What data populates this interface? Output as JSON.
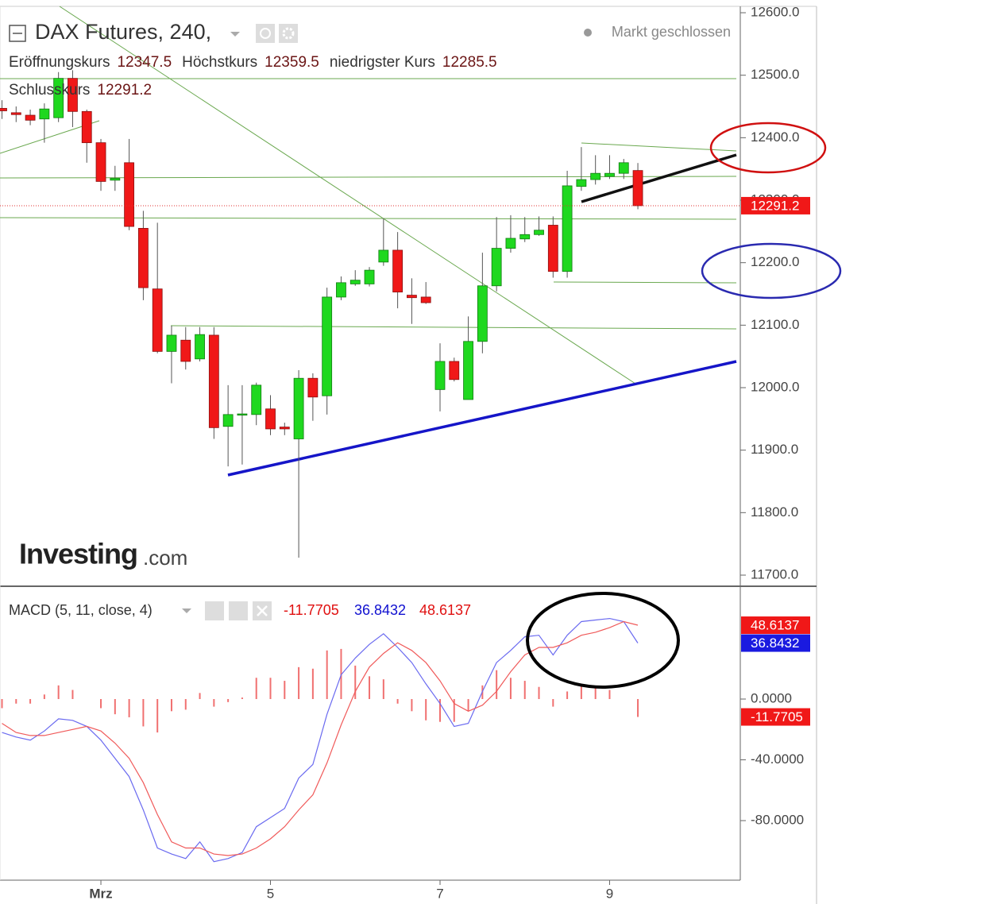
{
  "chart_data": [
    {
      "type": "candlestick",
      "title": "DAX Futures, 240,",
      "status": "Markt geschlossen",
      "ohlc_labels": [
        "Eröffnungskurs",
        "Höchstkurs",
        "niedrigster Kurs",
        "Schlusskurs"
      ],
      "categories": [
        null,
        null,
        null,
        null,
        null,
        null,
        null,
        "Mrz",
        null,
        null,
        null,
        null,
        null,
        null,
        null,
        null,
        null,
        null,
        null,
        "5",
        null,
        null,
        null,
        null,
        null,
        null,
        null,
        null,
        null,
        null,
        null,
        "7",
        null,
        null,
        null,
        null,
        null,
        null,
        null,
        null,
        null,
        null,
        null,
        "9",
        null,
        null
      ],
      "open": [
        12447,
        12440,
        12436,
        12430,
        12432,
        12495,
        12442,
        12392,
        12332,
        12360,
        12255,
        12158,
        12058,
        12076,
        12046,
        12084,
        11938,
        11956,
        11957,
        11966,
        11937,
        11918,
        12015,
        11987,
        12145,
        12166,
        12166,
        12201,
        12220,
        12148,
        12145,
        11997,
        12042,
        11981,
        12074,
        12163,
        12223,
        12238,
        12245,
        12260,
        12186,
        12322,
        12333,
        12338,
        12343,
        12347.5
      ],
      "high": [
        12460,
        12450,
        12445,
        12455,
        12505,
        12508,
        12445,
        12398,
        12355,
        12398,
        12283,
        12264,
        12099,
        12097,
        12097,
        12097,
        12004,
        12004,
        12008,
        11988,
        11944,
        12028,
        12023,
        12160,
        12178,
        12188,
        12193,
        12271,
        12249,
        12175,
        12169,
        12071,
        12048,
        12114,
        12216,
        12273,
        12276,
        12273,
        12274,
        12274,
        12347,
        12385,
        12372,
        12372,
        12366,
        12359.5
      ],
      "low": [
        12430,
        12425,
        12420,
        12392,
        12425,
        12417,
        12360,
        12315,
        12315,
        12252,
        12140,
        12055,
        12007,
        12029,
        12042,
        11918,
        11874,
        11877,
        11940,
        11924,
        11924,
        11728,
        11947,
        11957,
        12140,
        12163,
        12162,
        12195,
        12127,
        12102,
        12134,
        11962,
        12010,
        11981,
        12055,
        12154,
        12216,
        12233,
        12243,
        12176,
        12176,
        12315,
        12325,
        12334,
        12334,
        12285.5
      ],
      "close": [
        12443,
        12437,
        12428,
        12446,
        12495,
        12442,
        12392,
        12330,
        12335,
        12258,
        12160,
        12058,
        12084,
        12042,
        12085,
        11936,
        11957,
        11958,
        12004,
        11934,
        11934,
        12015,
        11985,
        12145,
        12168,
        12172,
        12188,
        12220,
        12153,
        12144,
        12136,
        12042,
        12013,
        12074,
        12163,
        12223,
        12239,
        12245,
        12252,
        12186,
        12323,
        12333,
        12343,
        12343,
        12360,
        12291.2
      ],
      "up_color": "#1fd81f",
      "down_color": "#f01818",
      "ylim": [
        11682.2,
        12610.2
      ],
      "yticks": [
        {
          "value": 11700,
          "label": "11700.0"
        },
        {
          "value": 11800,
          "label": "11800.0"
        },
        {
          "value": 11900,
          "label": "11900.0"
        },
        {
          "value": 12000,
          "label": "12000.0"
        },
        {
          "value": 12100,
          "label": "12100.0"
        },
        {
          "value": 12200,
          "label": "12200.0"
        },
        {
          "value": 12300,
          "label": "12300.0"
        },
        {
          "value": 12400,
          "label": "12400.0"
        },
        {
          "value": 12500,
          "label": "12500.0"
        },
        {
          "value": 12600,
          "label": "12600.0"
        }
      ],
      "watermark": "Investing",
      "watermark_suffix": ".com"
    },
    {
      "type": "macd",
      "title": "MACD (5, 11, close, 4)",
      "series": [
        {
          "style": "bar",
          "color": "#f07070",
          "values": [
            -6,
            -3,
            -3,
            3,
            9,
            6,
            0,
            -6,
            -10,
            -12,
            -18,
            -22,
            -8,
            -7,
            4,
            -5,
            -2,
            1,
            14,
            14,
            12,
            21,
            20,
            32,
            33,
            22,
            15,
            13,
            -3,
            -8,
            -14,
            -15,
            -15,
            -8,
            9,
            19,
            14,
            12,
            8,
            -5,
            5,
            9,
            8,
            6,
            0,
            -11.7705
          ]
        },
        {
          "style": "line",
          "color": "#6a6af0",
          "values": [
            -22,
            -25,
            -27,
            -21,
            -13,
            -14,
            -18,
            -27,
            -39,
            -51,
            -73,
            -98,
            -102,
            -105,
            -94,
            -107,
            -105,
            -101,
            -84,
            -78,
            -72,
            -52,
            -43,
            -10,
            16,
            27,
            36,
            43,
            34,
            24,
            10,
            -3,
            -18,
            -16,
            5,
            24,
            32,
            41,
            42,
            29,
            42,
            51,
            52,
            53,
            51,
            36.8432
          ]
        },
        {
          "style": "line",
          "color": "#f05a5a",
          "values": [
            -16,
            -22,
            -24,
            -24,
            -22,
            -20,
            -18,
            -21,
            -29,
            -39,
            -55,
            -76,
            -94,
            -98,
            -98,
            -102,
            -103,
            -102,
            -98,
            -92,
            -84,
            -73,
            -63,
            -42,
            -17,
            5,
            21,
            30,
            37,
            32,
            24,
            12,
            -3,
            -8,
            -4,
            5,
            18,
            29,
            34,
            34,
            37,
            42,
            44,
            47,
            51,
            48.6137
          ]
        }
      ],
      "ylim": [
        -119.2,
        73.2
      ],
      "yticks": [
        {
          "value": -80,
          "label": "-80.0000"
        },
        {
          "value": -40,
          "label": "-40.0000"
        },
        {
          "value": 0,
          "label": "0.0000"
        }
      ]
    }
  ]
}
